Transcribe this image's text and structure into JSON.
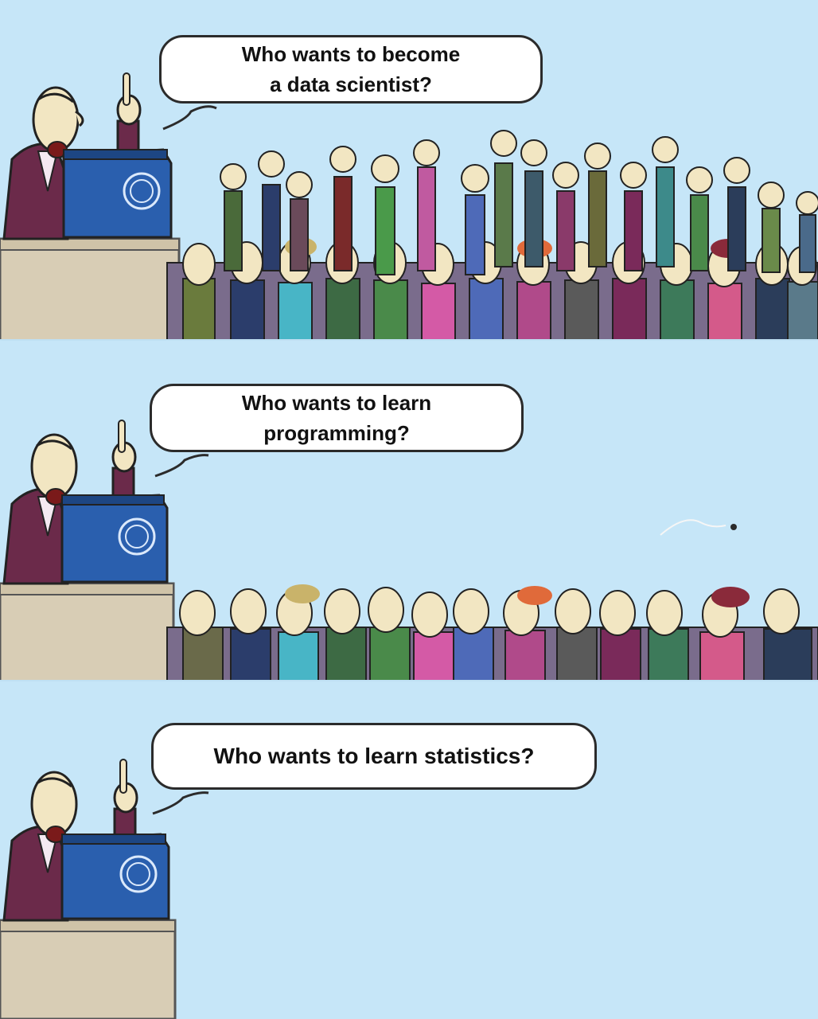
{
  "panels": [
    {
      "bubble": {
        "line1": "Who wants to become",
        "line2": "a data scientist?"
      },
      "audience_present": true,
      "hands_raised": true
    },
    {
      "bubble": {
        "line1": "Who wants to learn",
        "line2": "programming?"
      },
      "audience_present": true,
      "hands_raised": false
    },
    {
      "bubble": {
        "line1": "Who wants to learn statistics?"
      },
      "audience_present": false,
      "hands_raised": false
    }
  ],
  "colors": {
    "sky": "#c6e6f8",
    "podium": "#2a5fae",
    "podium_dark": "#1d4683",
    "stage": "#d8cdb5",
    "speaker_suit": "#6b2a4a",
    "skin": "#f2e6c2"
  },
  "icons": {
    "podium_emblem": "un-emblem-icon",
    "sweat_drop": "sweat-drop-icon"
  }
}
